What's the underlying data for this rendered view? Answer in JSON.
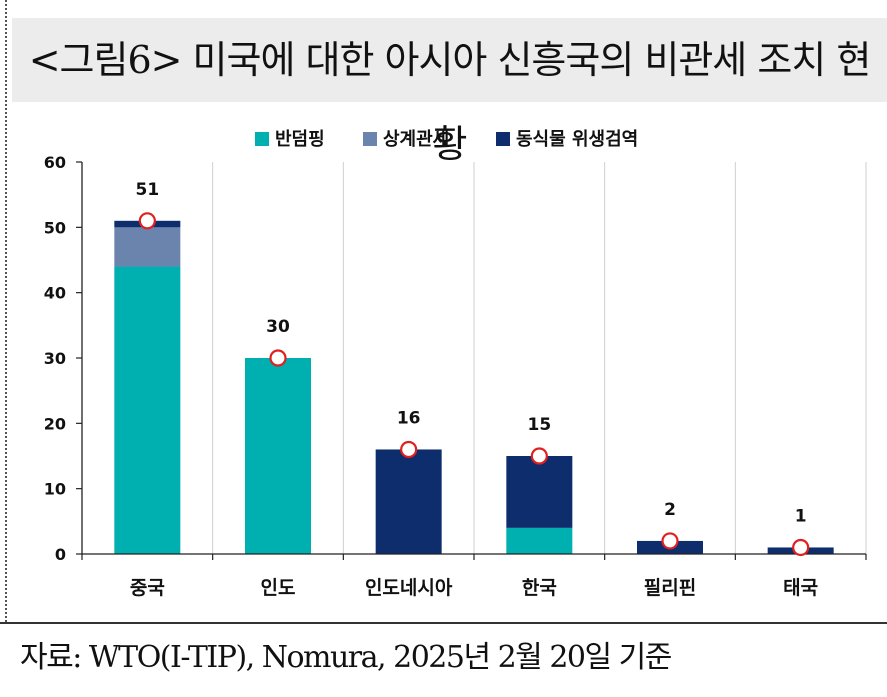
{
  "title": "<그림6> 미국에 대한 아시아 신흥국의 비관세 조치 현황",
  "source": "자료: WTO(I-TIP), Nomura, 2025년 2월 20일 기준",
  "chart_data": {
    "type": "bar",
    "stacked": true,
    "categories": [
      "중국",
      "인도",
      "인도네시아",
      "한국",
      "필리핀",
      "태국"
    ],
    "series": [
      {
        "name": "반덤핑",
        "color": "#00b0b0",
        "values": [
          44,
          30,
          0,
          4,
          0,
          0
        ]
      },
      {
        "name": "상계관세",
        "color": "#6b84ad",
        "values": [
          6,
          0,
          0,
          0,
          0,
          0
        ]
      },
      {
        "name": "동식물 위생검역",
        "color": "#0d2d6c",
        "values": [
          1,
          0,
          16,
          11,
          2,
          1
        ]
      }
    ],
    "totals": [
      51,
      30,
      16,
      15,
      2,
      1
    ],
    "total_labels": [
      "51",
      "30",
      "16",
      "15",
      "2",
      "1"
    ],
    "ylim": [
      0,
      60
    ],
    "yticks": [
      0,
      10,
      20,
      30,
      40,
      50,
      60
    ],
    "ytick_labels": [
      "0",
      "10",
      "20",
      "30",
      "40",
      "50",
      "60"
    ],
    "grid": "vertical",
    "legend_position": "top-center",
    "total_marker": "red-circle"
  }
}
